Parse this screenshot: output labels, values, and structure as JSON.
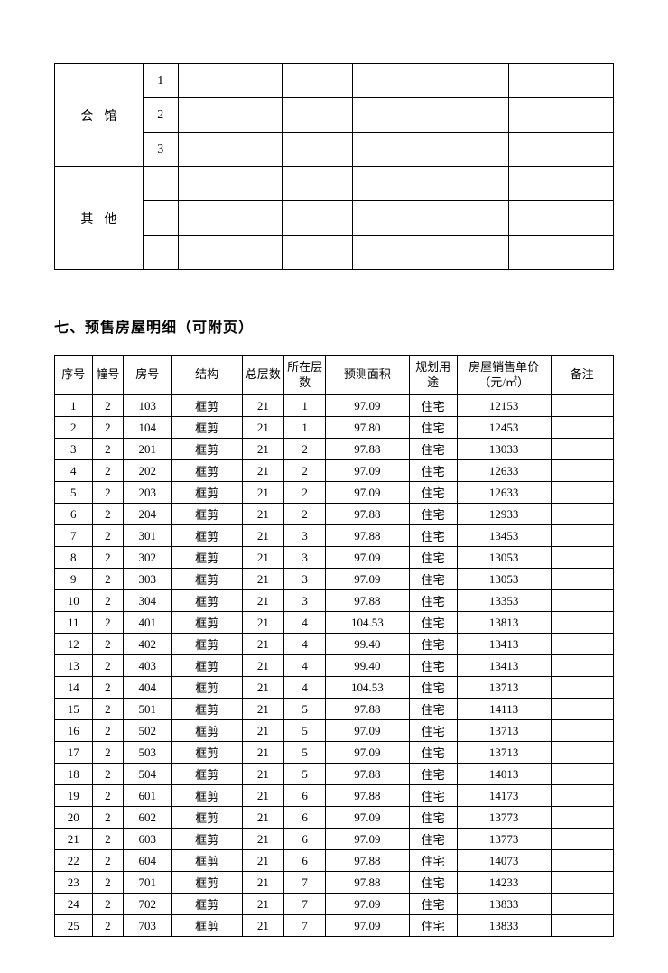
{
  "topTable": {
    "rows": [
      {
        "label": "会馆",
        "nums": [
          "1",
          "2",
          "3"
        ]
      },
      {
        "label": "其他",
        "nums": [
          "",
          "",
          ""
        ]
      }
    ]
  },
  "sectionTitle": "七、预售房屋明细（可附页）",
  "headers": {
    "seq": "序号",
    "building": "幢号",
    "room": "房号",
    "structure": "结构",
    "totalFloors": "总层数",
    "currentFloor": "所在层数",
    "area": "预测面积",
    "use": "规划用途",
    "price": "房屋销售单价（元/㎡）",
    "note": "备注"
  },
  "rows": [
    {
      "seq": "1",
      "bld": "2",
      "room": "103",
      "struct": "框剪",
      "totfl": "21",
      "curfl": "1",
      "area": "97.09",
      "use": "住宅",
      "price": "12153",
      "note": ""
    },
    {
      "seq": "2",
      "bld": "2",
      "room": "104",
      "struct": "框剪",
      "totfl": "21",
      "curfl": "1",
      "area": "97.80",
      "use": "住宅",
      "price": "12453",
      "note": ""
    },
    {
      "seq": "3",
      "bld": "2",
      "room": "201",
      "struct": "框剪",
      "totfl": "21",
      "curfl": "2",
      "area": "97.88",
      "use": "住宅",
      "price": "13033",
      "note": ""
    },
    {
      "seq": "4",
      "bld": "2",
      "room": "202",
      "struct": "框剪",
      "totfl": "21",
      "curfl": "2",
      "area": "97.09",
      "use": "住宅",
      "price": "12633",
      "note": ""
    },
    {
      "seq": "5",
      "bld": "2",
      "room": "203",
      "struct": "框剪",
      "totfl": "21",
      "curfl": "2",
      "area": "97.09",
      "use": "住宅",
      "price": "12633",
      "note": ""
    },
    {
      "seq": "6",
      "bld": "2",
      "room": "204",
      "struct": "框剪",
      "totfl": "21",
      "curfl": "2",
      "area": "97.88",
      "use": "住宅",
      "price": "12933",
      "note": ""
    },
    {
      "seq": "7",
      "bld": "2",
      "room": "301",
      "struct": "框剪",
      "totfl": "21",
      "curfl": "3",
      "area": "97.88",
      "use": "住宅",
      "price": "13453",
      "note": ""
    },
    {
      "seq": "8",
      "bld": "2",
      "room": "302",
      "struct": "框剪",
      "totfl": "21",
      "curfl": "3",
      "area": "97.09",
      "use": "住宅",
      "price": "13053",
      "note": ""
    },
    {
      "seq": "9",
      "bld": "2",
      "room": "303",
      "struct": "框剪",
      "totfl": "21",
      "curfl": "3",
      "area": "97.09",
      "use": "住宅",
      "price": "13053",
      "note": ""
    },
    {
      "seq": "10",
      "bld": "2",
      "room": "304",
      "struct": "框剪",
      "totfl": "21",
      "curfl": "3",
      "area": "97.88",
      "use": "住宅",
      "price": "13353",
      "note": ""
    },
    {
      "seq": "11",
      "bld": "2",
      "room": "401",
      "struct": "框剪",
      "totfl": "21",
      "curfl": "4",
      "area": "104.53",
      "use": "住宅",
      "price": "13813",
      "note": ""
    },
    {
      "seq": "12",
      "bld": "2",
      "room": "402",
      "struct": "框剪",
      "totfl": "21",
      "curfl": "4",
      "area": "99.40",
      "use": "住宅",
      "price": "13413",
      "note": ""
    },
    {
      "seq": "13",
      "bld": "2",
      "room": "403",
      "struct": "框剪",
      "totfl": "21",
      "curfl": "4",
      "area": "99.40",
      "use": "住宅",
      "price": "13413",
      "note": ""
    },
    {
      "seq": "14",
      "bld": "2",
      "room": "404",
      "struct": "框剪",
      "totfl": "21",
      "curfl": "4",
      "area": "104.53",
      "use": "住宅",
      "price": "13713",
      "note": ""
    },
    {
      "seq": "15",
      "bld": "2",
      "room": "501",
      "struct": "框剪",
      "totfl": "21",
      "curfl": "5",
      "area": "97.88",
      "use": "住宅",
      "price": "14113",
      "note": ""
    },
    {
      "seq": "16",
      "bld": "2",
      "room": "502",
      "struct": "框剪",
      "totfl": "21",
      "curfl": "5",
      "area": "97.09",
      "use": "住宅",
      "price": "13713",
      "note": ""
    },
    {
      "seq": "17",
      "bld": "2",
      "room": "503",
      "struct": "框剪",
      "totfl": "21",
      "curfl": "5",
      "area": "97.09",
      "use": "住宅",
      "price": "13713",
      "note": ""
    },
    {
      "seq": "18",
      "bld": "2",
      "room": "504",
      "struct": "框剪",
      "totfl": "21",
      "curfl": "5",
      "area": "97.88",
      "use": "住宅",
      "price": "14013",
      "note": ""
    },
    {
      "seq": "19",
      "bld": "2",
      "room": "601",
      "struct": "框剪",
      "totfl": "21",
      "curfl": "6",
      "area": "97.88",
      "use": "住宅",
      "price": "14173",
      "note": ""
    },
    {
      "seq": "20",
      "bld": "2",
      "room": "602",
      "struct": "框剪",
      "totfl": "21",
      "curfl": "6",
      "area": "97.09",
      "use": "住宅",
      "price": "13773",
      "note": ""
    },
    {
      "seq": "21",
      "bld": "2",
      "room": "603",
      "struct": "框剪",
      "totfl": "21",
      "curfl": "6",
      "area": "97.09",
      "use": "住宅",
      "price": "13773",
      "note": ""
    },
    {
      "seq": "22",
      "bld": "2",
      "room": "604",
      "struct": "框剪",
      "totfl": "21",
      "curfl": "6",
      "area": "97.88",
      "use": "住宅",
      "price": "14073",
      "note": ""
    },
    {
      "seq": "23",
      "bld": "2",
      "room": "701",
      "struct": "框剪",
      "totfl": "21",
      "curfl": "7",
      "area": "97.88",
      "use": "住宅",
      "price": "14233",
      "note": ""
    },
    {
      "seq": "24",
      "bld": "2",
      "room": "702",
      "struct": "框剪",
      "totfl": "21",
      "curfl": "7",
      "area": "97.09",
      "use": "住宅",
      "price": "13833",
      "note": ""
    },
    {
      "seq": "25",
      "bld": "2",
      "room": "703",
      "struct": "框剪",
      "totfl": "21",
      "curfl": "7",
      "area": "97.09",
      "use": "住宅",
      "price": "13833",
      "note": ""
    }
  ]
}
